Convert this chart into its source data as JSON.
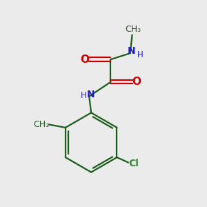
{
  "bg_color": "#ebebeb",
  "bond_color": "#1a5c1a",
  "N_color": "#2222bb",
  "O_color": "#cc0000",
  "Cl_color": "#2e8b2e",
  "C_color": "#1a5c1a",
  "figsize": [
    3.0,
    3.0
  ],
  "dpi": 100,
  "xlim": [
    0,
    10
  ],
  "ylim": [
    0,
    10
  ]
}
